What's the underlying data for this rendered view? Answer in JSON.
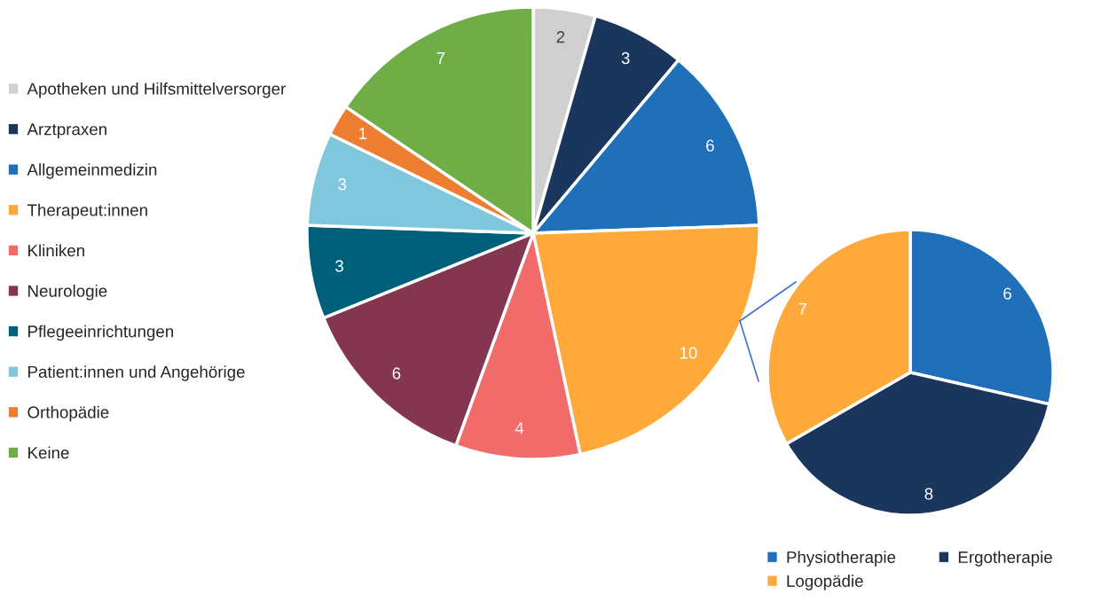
{
  "chart_data": [
    {
      "type": "pie",
      "categories": [
        "Apotheken und Hilfsmittelversorger",
        "Arztpraxen",
        "Allgemeinmedizin",
        "Therapeut:innen",
        "Kliniken",
        "Neurologie",
        "Pflegeeinrichtungen",
        "Patient:innen und Angehörige",
        "Orthopädie",
        "Keine"
      ],
      "values": [
        2,
        3,
        6,
        10,
        4,
        6,
        3,
        3,
        1,
        7
      ],
      "colors": [
        "#d0d0d0",
        "#1a365d",
        "#1f6fb9",
        "#ffa93a",
        "#f26b6b",
        "#843550",
        "#00607a",
        "#80c7dd",
        "#ed7d31",
        "#70ad47"
      ],
      "data_labels": true,
      "legend": "left"
    },
    {
      "type": "pie",
      "categories": [
        "Physiotherapie",
        "Ergotherapie",
        "Logopädie"
      ],
      "values": [
        6,
        8,
        7
      ],
      "colors": [
        "#1f6fb9",
        "#1a365d",
        "#ffa93a"
      ],
      "data_labels": true,
      "legend": "bottom"
    }
  ]
}
